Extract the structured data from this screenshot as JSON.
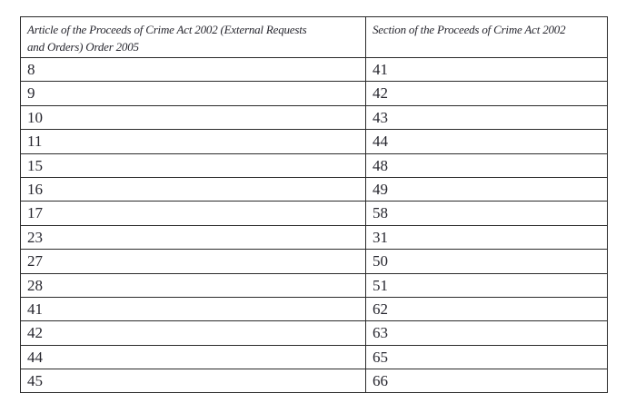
{
  "page": {
    "background": "#ffffff",
    "text_color": "#26262e",
    "border_color": "#2b2b2b"
  },
  "table": {
    "header": {
      "col1_full": "Article of the Proceeds of Crime Act 2002 (External Requests and Orders) Order 2005",
      "col1_lines": [
        "Article of the Proceeds of Crime Act 2002 (External Requests",
        "and Orders) Order 2005"
      ],
      "col2": "Section of the Proceeds of Crime Act 2002"
    },
    "rows": [
      {
        "article": "8",
        "section": "41"
      },
      {
        "article": "9",
        "section": "42"
      },
      {
        "article": "10",
        "section": "43"
      },
      {
        "article": "11",
        "section": "44"
      },
      {
        "article": "15",
        "section": "48"
      },
      {
        "article": "16",
        "section": "49"
      },
      {
        "article": "17",
        "section": "58"
      },
      {
        "article": "23",
        "section": "31"
      },
      {
        "article": "27",
        "section": "50"
      },
      {
        "article": "28",
        "section": "51"
      },
      {
        "article": "41",
        "section": "62"
      },
      {
        "article": "42",
        "section": "63"
      },
      {
        "article": "44",
        "section": "65"
      },
      {
        "article": "45",
        "section": "66"
      }
    ]
  }
}
